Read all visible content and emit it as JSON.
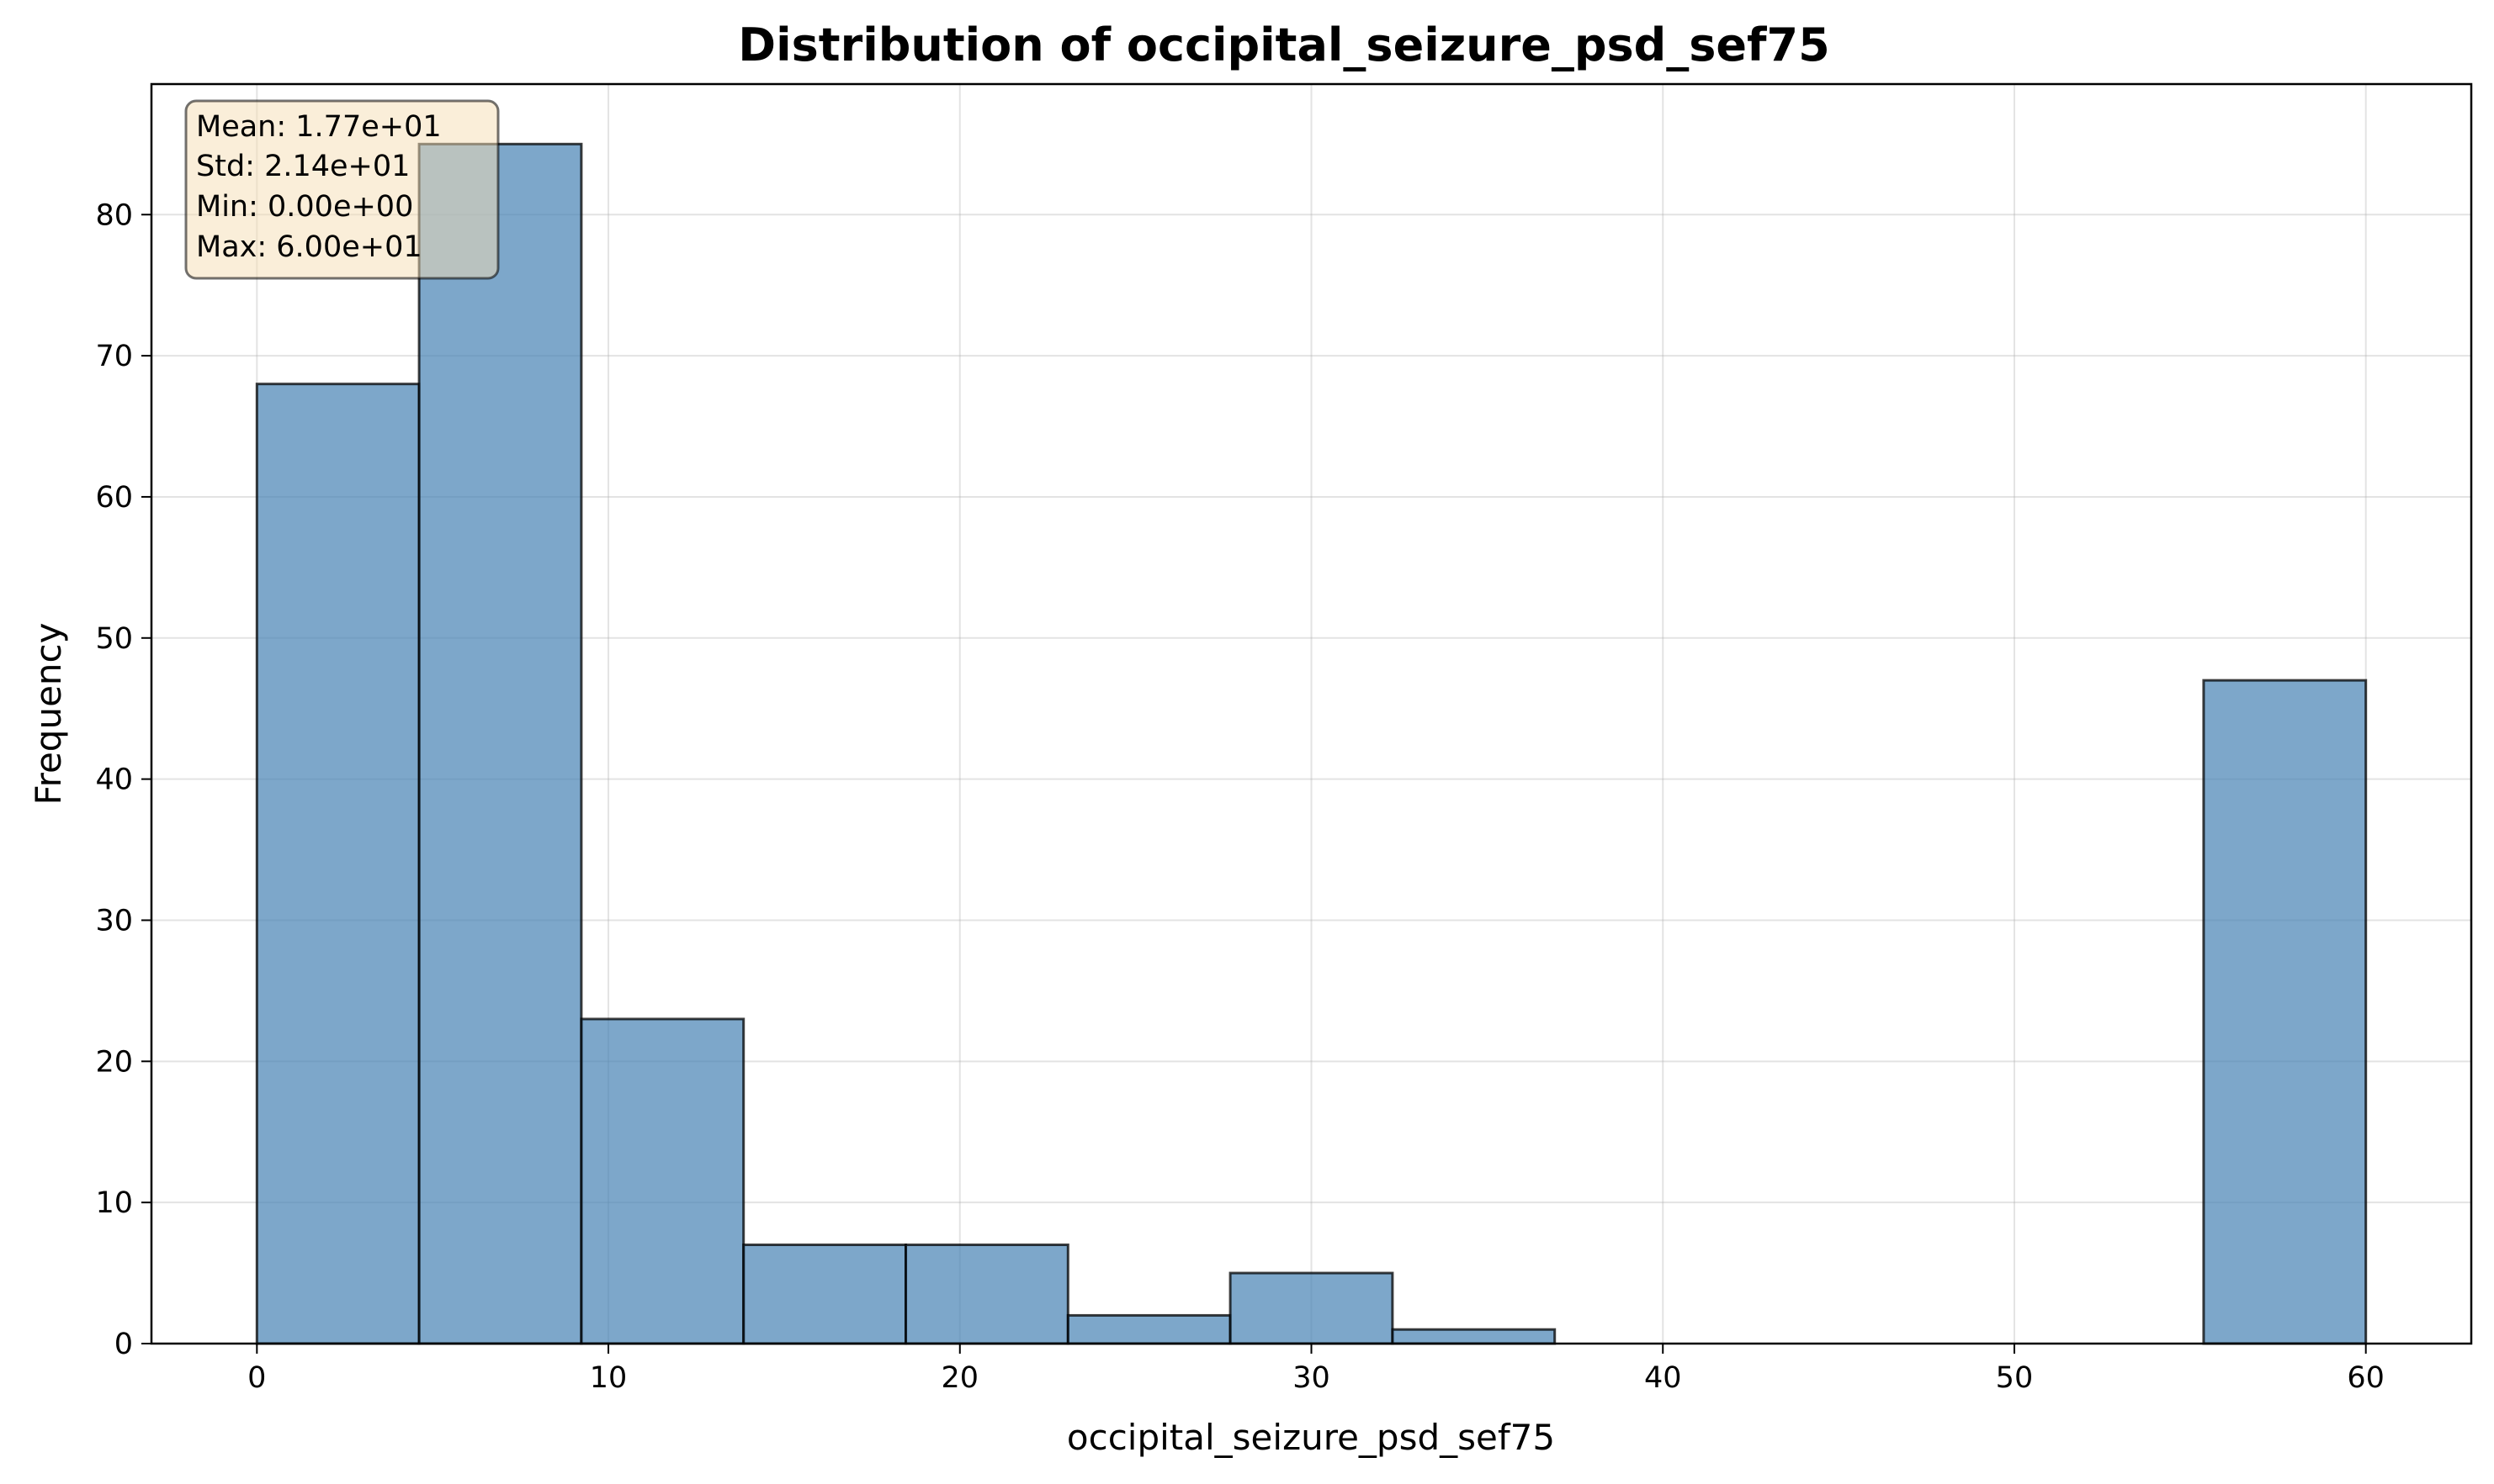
{
  "chart_data": {
    "type": "bar",
    "title": "Distribution of occipital_seizure_psd_sef75",
    "xlabel": "occipital_seizure_psd_sef75",
    "ylabel": "Frequency",
    "bin_edges": [
      0,
      4.615,
      9.231,
      13.846,
      18.462,
      23.077,
      27.692,
      32.308,
      36.923,
      41.538,
      46.154,
      50.769,
      55.385,
      60
    ],
    "values": [
      68,
      85,
      23,
      7,
      7,
      2,
      5,
      1,
      0,
      0,
      0,
      0,
      47
    ],
    "xlim": [
      -3,
      63
    ],
    "ylim": [
      0,
      89.25
    ],
    "xticks": [
      0,
      10,
      20,
      30,
      40,
      50,
      60
    ],
    "yticks": [
      0,
      10,
      20,
      30,
      40,
      50,
      60,
      70,
      80
    ],
    "grid": true,
    "bar_color": "#4682b4",
    "stats_box": {
      "position": "top-left",
      "background": "#f5deb3",
      "lines": [
        "Mean: 1.77e+01",
        "Std: 2.14e+01",
        "Min: 0.00e+00",
        "Max: 6.00e+01"
      ]
    }
  }
}
